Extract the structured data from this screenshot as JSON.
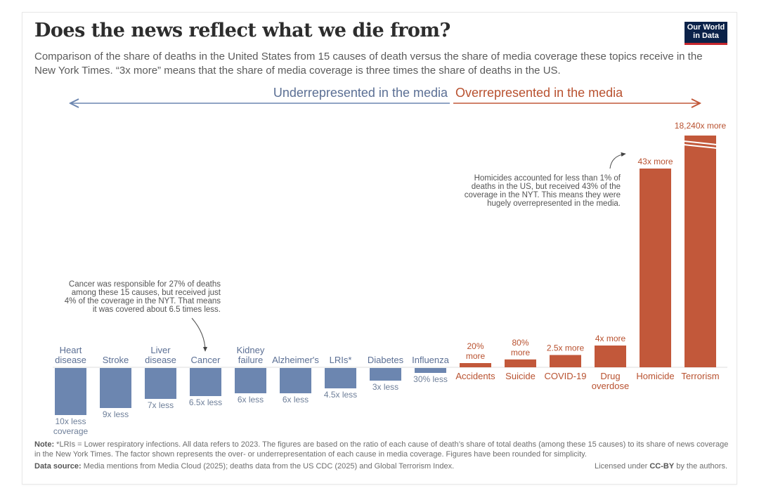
{
  "header": {
    "title": "Does the news reflect what we die from?",
    "subtitle": "Comparison of the share of deaths in the United States from 15 causes of death versus the share of media coverage these topics receive in the New York Times. “3x more” means that the share of media coverage is three times the share of deaths in the US.",
    "logo_line1": "Our World",
    "logo_line2": "in Data"
  },
  "colors": {
    "under": "#6c86b0",
    "over": "#c2583a",
    "under_text": "#5b6f94",
    "over_text": "#b8512f"
  },
  "direction": {
    "under_label": "Underrepresented in the media",
    "over_label": "Overrepresented in the media"
  },
  "annotations": {
    "cancer": [
      "Cancer was responsible for 27% of deaths",
      "among these 15 causes, but received just",
      "4% of the coverage in the NYT. That means",
      "it was covered about 6.5 times less."
    ],
    "homicide": [
      "Homicides accounted for less than 1% of",
      "deaths in the US, but received 43% of the",
      "coverage in the NYT. This means they were",
      "hugely overrepresented in the media."
    ]
  },
  "chart_data": {
    "type": "bar",
    "title": "Does the news reflect what we die from?",
    "xlabel": "",
    "ylabel": "",
    "categories": [
      "Heart disease",
      "Stroke",
      "Liver disease",
      "Cancer",
      "Kidney failure",
      "Alzheimer's",
      "LRIs*",
      "Diabetes",
      "Influenza",
      "Accidents",
      "Suicide",
      "COVID-19",
      "Drug overdose",
      "Homicide",
      "Terrorism"
    ],
    "category_lines": [
      [
        "Heart",
        "disease"
      ],
      [
        "Stroke"
      ],
      [
        "Liver",
        "disease"
      ],
      [
        "Cancer"
      ],
      [
        "Kidney",
        "failure"
      ],
      [
        "Alzheimer's"
      ],
      [
        "LRIs*"
      ],
      [
        "Diabetes"
      ],
      [
        "Influenza"
      ],
      [
        "Accidents"
      ],
      [
        "Suicide"
      ],
      [
        "COVID-19"
      ],
      [
        "Drug",
        "overdose"
      ],
      [
        "Homicide"
      ],
      [
        "Terrorism"
      ]
    ],
    "factors": [
      -10,
      -9,
      -7,
      -6.5,
      -6,
      -6,
      -4.5,
      -3,
      -1.3,
      1.2,
      1.8,
      2.5,
      4,
      43,
      18240
    ],
    "direction": [
      "under",
      "under",
      "under",
      "under",
      "under",
      "under",
      "under",
      "under",
      "under",
      "over",
      "over",
      "over",
      "over",
      "over",
      "over"
    ],
    "value_labels": [
      [
        "10x less",
        "coverage"
      ],
      [
        "9x less"
      ],
      [
        "7x less"
      ],
      [
        "6.5x less"
      ],
      [
        "6x less"
      ],
      [
        "6x less"
      ],
      [
        "4.5x less"
      ],
      [
        "3x less"
      ],
      [
        "30% less"
      ],
      [
        "20%",
        "more"
      ],
      [
        "80%",
        "more"
      ],
      [
        "2.5x more"
      ],
      [
        "4x more"
      ],
      [
        "43x more"
      ],
      [
        "18,240x more"
      ]
    ],
    "axis_break": "Terrorism bar truncated",
    "grid": false,
    "legend": "none"
  },
  "footer": {
    "note_label": "Note:",
    "note_text": " *LRIs = Lower respiratory infections. All data refers to 2023. The figures are based on the ratio of each cause of death’s share of total deaths (among these 15 causes) to its share of news coverage in the New York Times. The factor shown represents the over- or underrepresentation of each cause in media coverage. Figures have been rounded for simplicity.",
    "source_label": "Data source:",
    "source_text": " Media mentions from Media Cloud (2025); deaths data from the US CDC (2025) and Global Terrorism Index.",
    "license_prefix": "Licensed under ",
    "license_bold": "CC-BY",
    "license_suffix": " by the authors."
  }
}
